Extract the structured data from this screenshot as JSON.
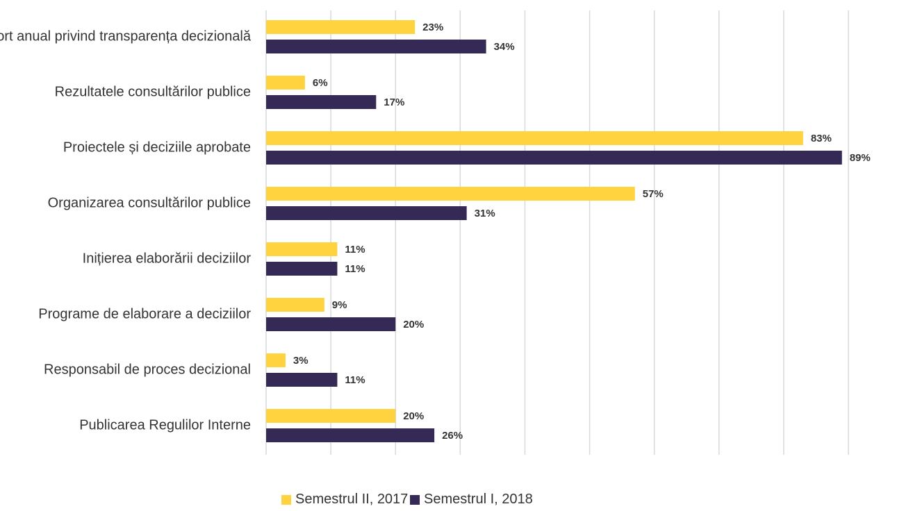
{
  "chart_data": {
    "type": "bar",
    "orientation": "horizontal",
    "categories": [
      "Raport anual privind transparența decizională",
      "Rezultatele consultărilor publice",
      "Proiectele și deciziile aprobate",
      "Organizarea consultărilor publice",
      "Inițierea elaborării deciziilor",
      "Programe de elaborare a deciziilor",
      "Responsabil de proces decizional",
      "Publicarea Regulilor Interne"
    ],
    "series": [
      {
        "name": "Semestrul II, 2017",
        "color": "#ffd23f",
        "values": [
          23,
          6,
          83,
          57,
          11,
          9,
          3,
          20
        ]
      },
      {
        "name": "Semestrul I, 2018",
        "color": "#352a55",
        "values": [
          34,
          17,
          89,
          31,
          11,
          20,
          11,
          26
        ]
      }
    ],
    "value_suffix": "%",
    "xlim": [
      0,
      90
    ],
    "grid": true,
    "legend_position": "bottom"
  }
}
